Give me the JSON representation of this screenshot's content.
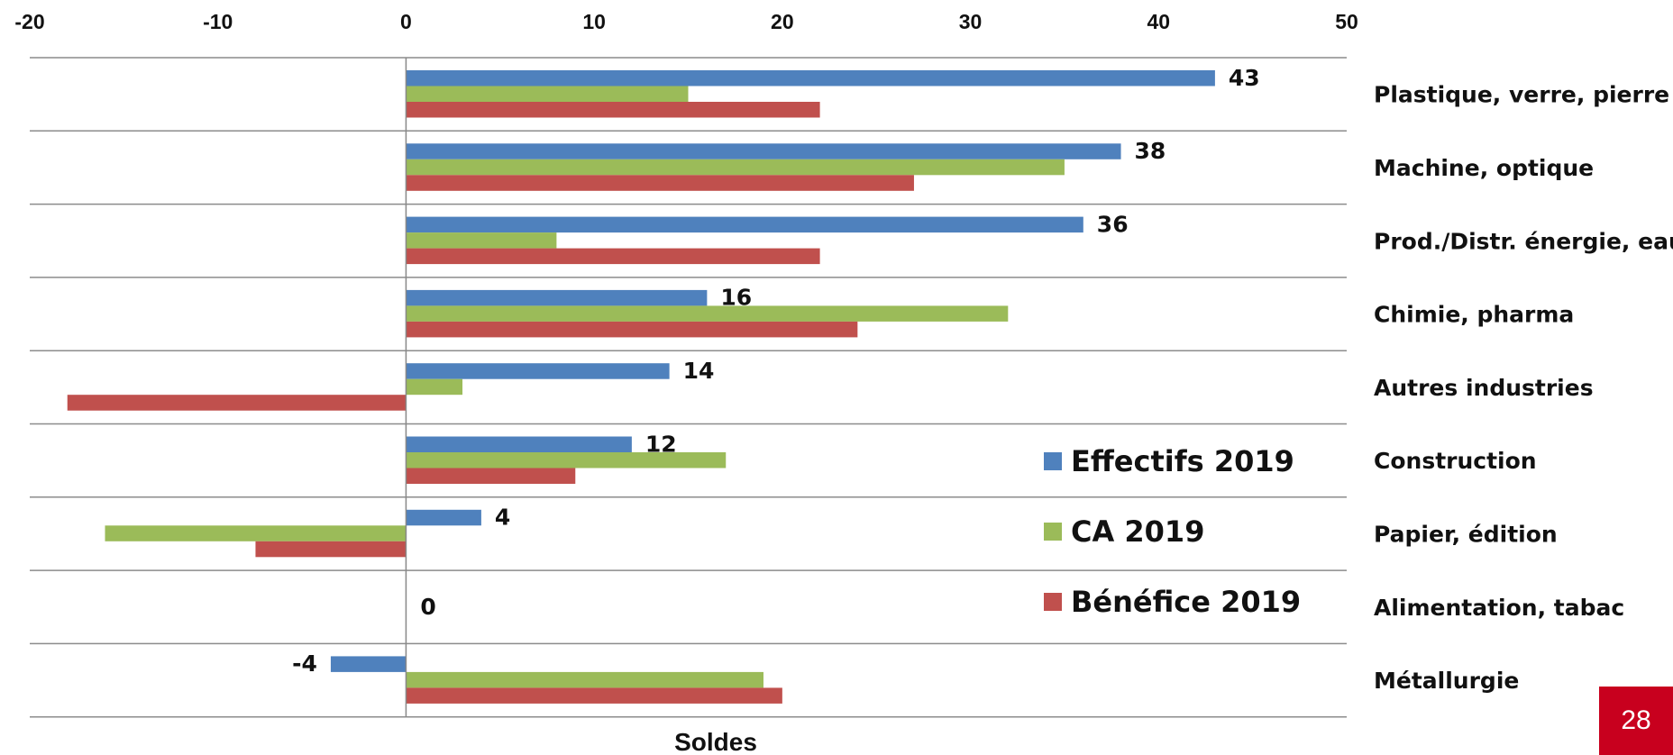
{
  "chart_data": {
    "type": "bar",
    "orientation": "horizontal",
    "xlabel": "Soldes",
    "xlim": [
      -20,
      50
    ],
    "xticks": [
      "-20",
      "-10",
      "0",
      "10",
      "20",
      "30",
      "40",
      "50"
    ],
    "grid": "horizontal separators between categories",
    "legend_placement": "inside, lower right",
    "categories": [
      "Plastique, verre, pierre",
      "Machine, optique",
      "Prod./Distr. énergie, eau",
      "Chimie, pharma",
      "Autres industries",
      "Construction",
      "Papier, édition",
      "Alimentation, tabac",
      "Métallurgie"
    ],
    "series": [
      {
        "name": "Effectifs 2019",
        "color": "#4f81bd",
        "values": [
          43,
          38,
          36,
          16,
          14,
          12,
          4,
          0,
          -4
        ],
        "labeled": true
      },
      {
        "name": "CA 2019",
        "color": "#9bbb59",
        "values": [
          15,
          35,
          8,
          32,
          3,
          17,
          -16,
          0,
          19
        ],
        "labeled": false
      },
      {
        "name": "Bénéfice 2019",
        "color": "#c0504d",
        "values": [
          22,
          27,
          22,
          24,
          -18,
          9,
          -8,
          0,
          20
        ],
        "labeled": false
      }
    ],
    "data_labels": [
      "43",
      "38",
      "36",
      "16",
      "14",
      "12",
      "4",
      "0",
      "-4"
    ]
  },
  "page_number": "28"
}
